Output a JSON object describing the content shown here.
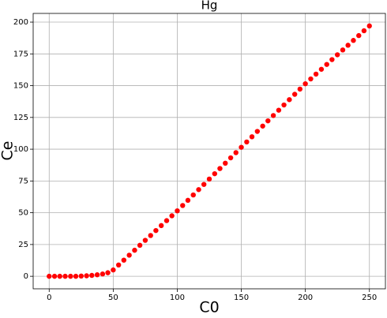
{
  "chart_data": {
    "type": "scatter",
    "title": "Hg",
    "xlabel": "C0",
    "ylabel": "Ce",
    "x": [
      0,
      4.2,
      8.3,
      12.5,
      16.7,
      20.8,
      25,
      29.2,
      33.3,
      37.5,
      41.7,
      45.8,
      50,
      54.2,
      58.3,
      62.5,
      66.7,
      70.8,
      75,
      79.2,
      83.3,
      87.5,
      91.7,
      95.8,
      100,
      104.2,
      108.3,
      112.5,
      116.7,
      120.8,
      125,
      129.2,
      133.3,
      137.5,
      141.7,
      145.8,
      150,
      154.2,
      158.3,
      162.5,
      166.7,
      170.8,
      175,
      179.2,
      183.3,
      187.5,
      191.7,
      195.8,
      200,
      204.2,
      208.3,
      212.5,
      216.7,
      220.8,
      225,
      229.2,
      233.3,
      237.5,
      241.7,
      245.8,
      250
    ],
    "values": [
      0,
      0,
      0,
      0,
      0,
      0,
      0.2,
      0.4,
      0.7,
      1.2,
      1.8,
      2.8,
      5,
      8.9,
      12.7,
      16.6,
      20.5,
      24.4,
      28.3,
      32.1,
      36.0,
      39.9,
      43.8,
      47.6,
      51.5,
      55.7,
      59.8,
      64.0,
      68.2,
      72.3,
      76.5,
      80.7,
      84.8,
      89.0,
      93.2,
      97.3,
      101.5,
      105.7,
      109.8,
      114.0,
      118.2,
      122.3,
      126.5,
      130.7,
      134.8,
      139.0,
      143.2,
      147.3,
      151.5,
      155.3,
      159.1,
      162.9,
      166.7,
      170.5,
      174.3,
      178.1,
      181.8,
      185.6,
      189.4,
      193.2,
      197.0
    ],
    "color": "#ff0000",
    "xlim": [
      -12.5,
      262.5
    ],
    "xticks": [
      0,
      50,
      100,
      150,
      200,
      250
    ],
    "ylim": [
      -9.85,
      206.85
    ],
    "yticks": [
      0,
      25,
      50,
      75,
      100,
      125,
      150,
      175,
      200
    ],
    "grid": true
  }
}
